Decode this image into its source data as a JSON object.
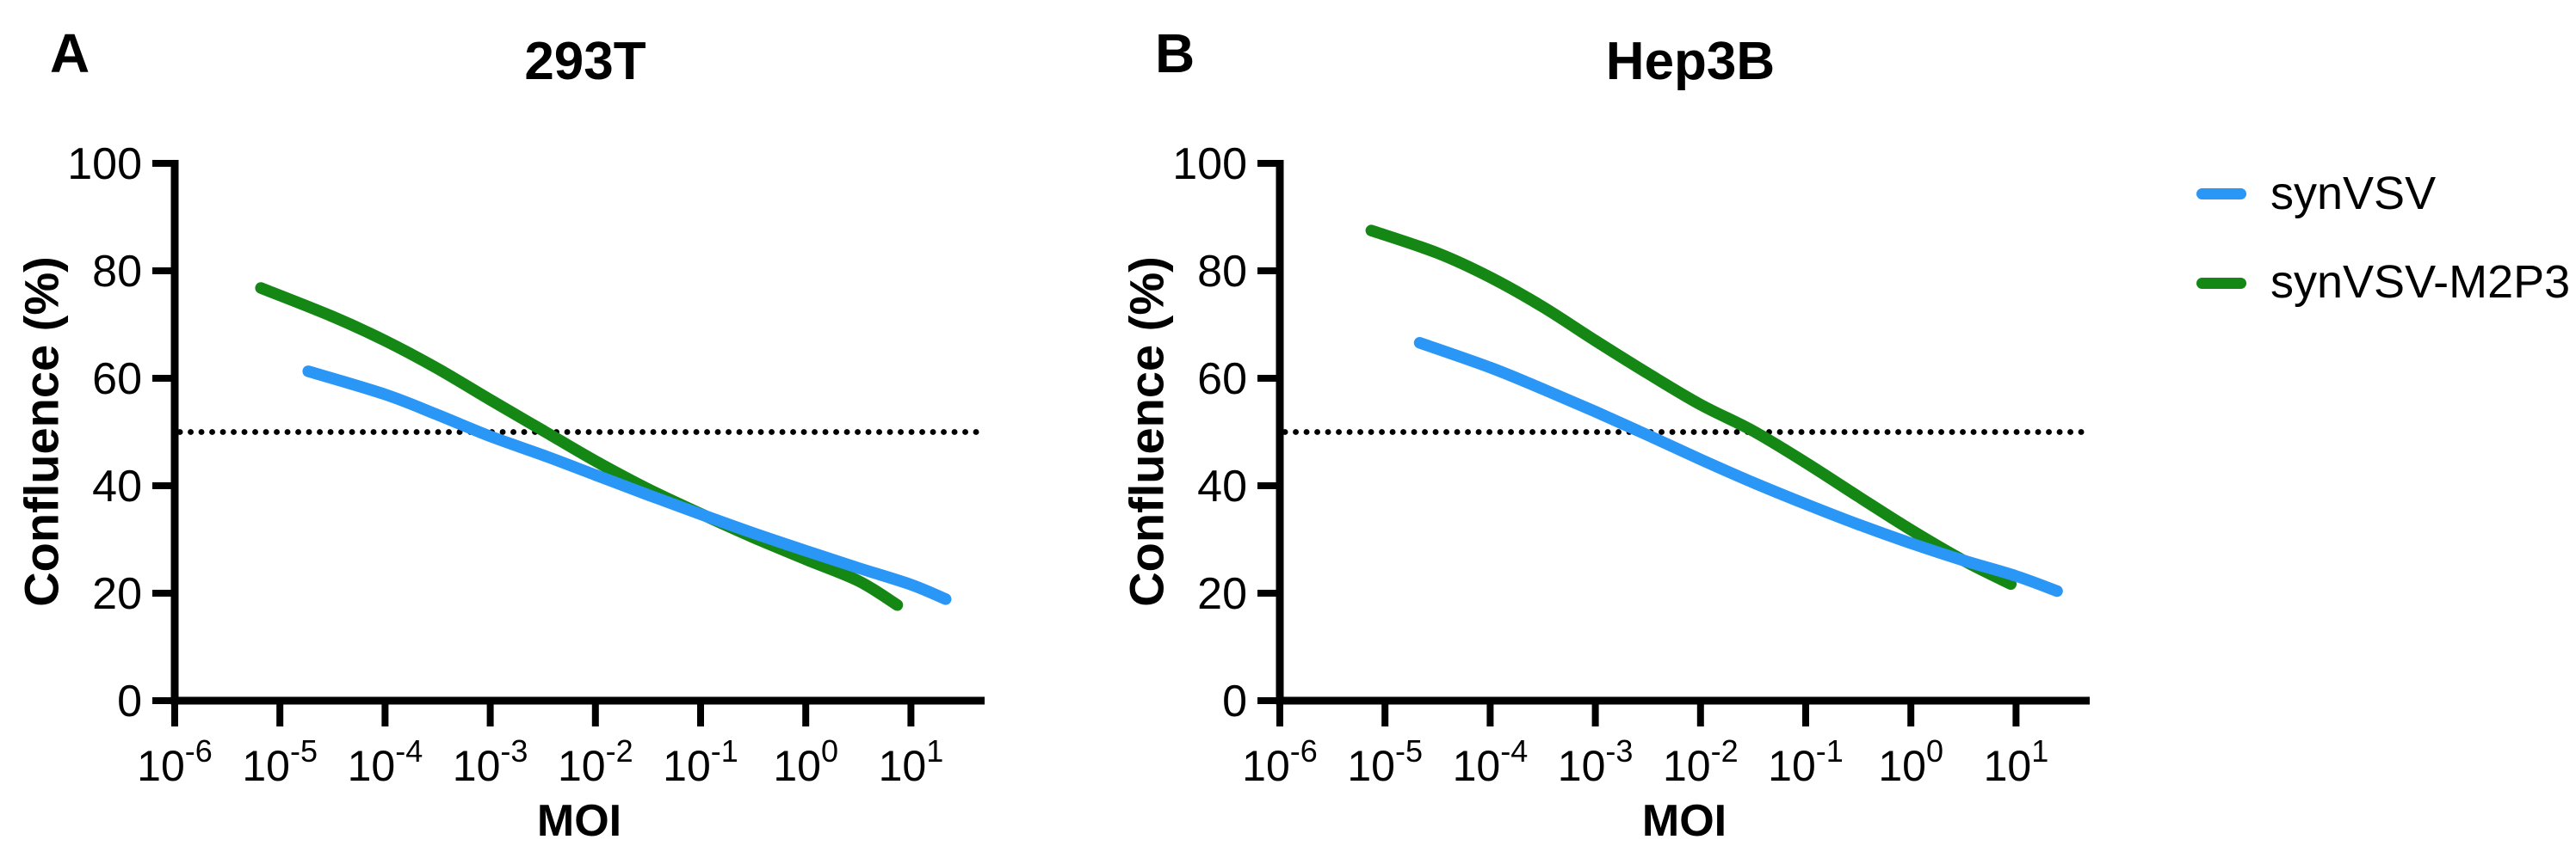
{
  "figure": {
    "description": "Two-panel dose-response figure: confluence vs MOI for two synthetic VSV viruses",
    "background_color": "#ffffff"
  },
  "chart_data": [
    {
      "panel_label": "A",
      "title": "293T",
      "type": "line",
      "xlabel": "MOI",
      "ylabel": "Confluence (%)",
      "xscale": "log10",
      "xtick_exponents": [
        -6,
        -5,
        -4,
        -3,
        -2,
        -1,
        0,
        1
      ],
      "xtick_base": "10",
      "xaxis_range_log10": [
        -6,
        1.7
      ],
      "ylim": [
        0,
        100
      ],
      "yticks": [
        0,
        20,
        40,
        60,
        80,
        100
      ],
      "grid": false,
      "legend_position": "outside-right",
      "reference_line": {
        "y": 50,
        "style": "dotted",
        "color": "#000000"
      },
      "series": [
        {
          "name": "synVSV",
          "color": "#2A96F5",
          "points_log10moi_confluence": [
            [
              -4.73,
              61.3
            ],
            [
              -4,
              57
            ],
            [
              -3.5,
              53.2
            ],
            [
              -3,
              49.2
            ],
            [
              -2.5,
              45.7
            ],
            [
              -2,
              42
            ],
            [
              -1.5,
              38.3
            ],
            [
              -1,
              34.7
            ],
            [
              -0.5,
              31.2
            ],
            [
              0,
              27.9
            ],
            [
              0.5,
              24.7
            ],
            [
              1,
              21.6
            ],
            [
              1.33,
              18.9
            ]
          ]
        },
        {
          "name": "synVSV-M2P3",
          "color": "#148714",
          "points_log10moi_confluence": [
            [
              -5.18,
              76.8
            ],
            [
              -4.5,
              71.5
            ],
            [
              -4,
              67
            ],
            [
              -3.5,
              61.8
            ],
            [
              -3,
              56
            ],
            [
              -2.5,
              50.3
            ],
            [
              -2,
              44.6
            ],
            [
              -1.5,
              39.4
            ],
            [
              -1,
              34.8
            ],
            [
              -0.5,
              30.4
            ],
            [
              0,
              26.3
            ],
            [
              0.5,
              22.3
            ],
            [
              0.87,
              17.8
            ]
          ]
        }
      ]
    },
    {
      "panel_label": "B",
      "title": "Hep3B",
      "type": "line",
      "xlabel": "MOI",
      "ylabel": "Confluence (%)",
      "xscale": "log10",
      "xtick_exponents": [
        -6,
        -5,
        -4,
        -3,
        -2,
        -1,
        0,
        1
      ],
      "xtick_base": "10",
      "xaxis_range_log10": [
        -6,
        1.7
      ],
      "ylim": [
        0,
        100
      ],
      "yticks": [
        0,
        20,
        40,
        60,
        80,
        100
      ],
      "grid": false,
      "legend_position": "outside-right",
      "reference_line": {
        "y": 50,
        "style": "dotted",
        "color": "#000000"
      },
      "series": [
        {
          "name": "synVSV",
          "color": "#2A96F5",
          "points_log10moi_confluence": [
            [
              -4.67,
              66.6
            ],
            [
              -4,
              62
            ],
            [
              -3.5,
              58
            ],
            [
              -3,
              53.8
            ],
            [
              -2.5,
              49.4
            ],
            [
              -2,
              44.9
            ],
            [
              -1.5,
              40.6
            ],
            [
              -1,
              36.6
            ],
            [
              -0.5,
              32.8
            ],
            [
              0,
              29.3
            ],
            [
              0.5,
              26.1
            ],
            [
              1,
              23.2
            ],
            [
              1.39,
              20.4
            ]
          ]
        },
        {
          "name": "synVSV-M2P3",
          "color": "#148714",
          "points_log10moi_confluence": [
            [
              -5.13,
              87.5
            ],
            [
              -4.5,
              83.3
            ],
            [
              -4,
              78.8
            ],
            [
              -3.5,
              73.3
            ],
            [
              -3,
              67
            ],
            [
              -2.5,
              60.9
            ],
            [
              -2,
              55.1
            ],
            [
              -1.5,
              50.2
            ],
            [
              -1,
              44.3
            ],
            [
              -0.5,
              38
            ],
            [
              0,
              31.8
            ],
            [
              0.5,
              26.1
            ],
            [
              0.95,
              21.7
            ]
          ]
        }
      ]
    }
  ],
  "legend": {
    "items": [
      {
        "label": "synVSV",
        "color": "#2A96F5"
      },
      {
        "label": "synVSV-M2P3",
        "color": "#148714"
      }
    ]
  }
}
